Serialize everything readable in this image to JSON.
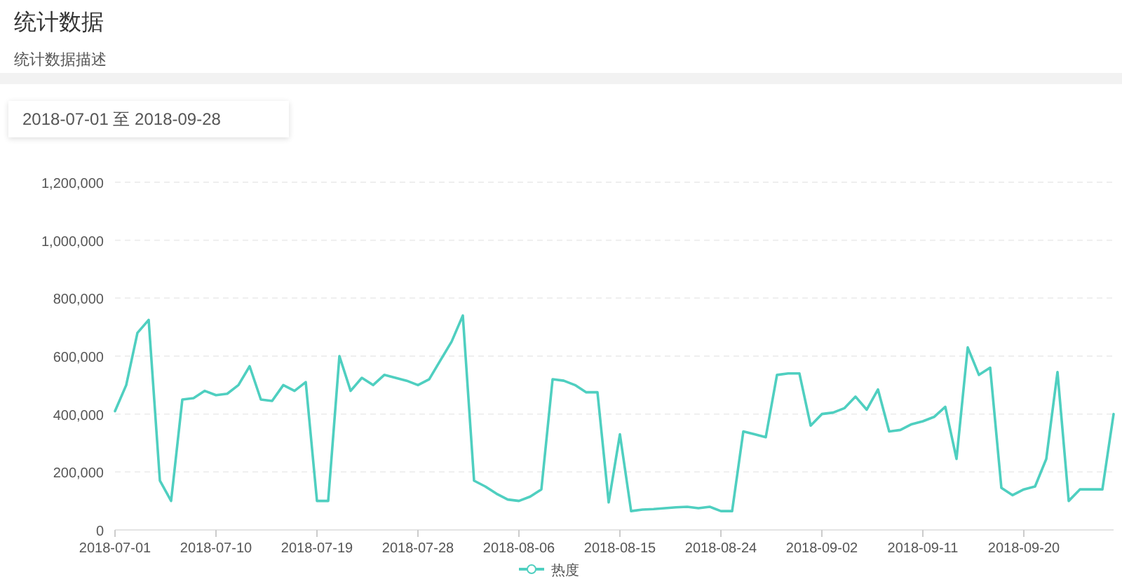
{
  "chart_data": {
    "type": "line",
    "title": "统计数据",
    "subtitle": "统计数据描述",
    "annotations": [
      "2018-07-01 至 2018-09-28"
    ],
    "x": [
      "2018-07-01",
      "2018-07-02",
      "2018-07-03",
      "2018-07-04",
      "2018-07-05",
      "2018-07-06",
      "2018-07-07",
      "2018-07-08",
      "2018-07-09",
      "2018-07-10",
      "2018-07-11",
      "2018-07-12",
      "2018-07-13",
      "2018-07-14",
      "2018-07-15",
      "2018-07-16",
      "2018-07-17",
      "2018-07-18",
      "2018-07-19",
      "2018-07-20",
      "2018-07-21",
      "2018-07-22",
      "2018-07-23",
      "2018-07-24",
      "2018-07-25",
      "2018-07-26",
      "2018-07-27",
      "2018-07-28",
      "2018-07-29",
      "2018-07-30",
      "2018-07-31",
      "2018-08-01",
      "2018-08-02",
      "2018-08-03",
      "2018-08-04",
      "2018-08-05",
      "2018-08-06",
      "2018-08-07",
      "2018-08-08",
      "2018-08-09",
      "2018-08-10",
      "2018-08-11",
      "2018-08-12",
      "2018-08-13",
      "2018-08-14",
      "2018-08-15",
      "2018-08-16",
      "2018-08-17",
      "2018-08-18",
      "2018-08-19",
      "2018-08-20",
      "2018-08-21",
      "2018-08-22",
      "2018-08-23",
      "2018-08-24",
      "2018-08-25",
      "2018-08-26",
      "2018-08-27",
      "2018-08-28",
      "2018-08-29",
      "2018-08-30",
      "2018-08-31",
      "2018-09-01",
      "2018-09-02",
      "2018-09-03",
      "2018-09-04",
      "2018-09-05",
      "2018-09-06",
      "2018-09-07",
      "2018-09-08",
      "2018-09-09",
      "2018-09-10",
      "2018-09-11",
      "2018-09-12",
      "2018-09-13",
      "2018-09-14",
      "2018-09-15",
      "2018-09-16",
      "2018-09-17",
      "2018-09-18",
      "2018-09-19",
      "2018-09-20",
      "2018-09-21",
      "2018-09-22",
      "2018-09-23",
      "2018-09-24",
      "2018-09-25",
      "2018-09-26",
      "2018-09-27",
      "2018-09-28"
    ],
    "series": [
      {
        "name": "热度",
        "color": "#4fcfc0",
        "values": [
          410000,
          500000,
          680000,
          725000,
          170000,
          100000,
          450000,
          455000,
          480000,
          465000,
          470000,
          500000,
          565000,
          450000,
          445000,
          500000,
          480000,
          510000,
          100000,
          100000,
          600000,
          480000,
          525000,
          500000,
          535000,
          525000,
          515000,
          500000,
          520000,
          585000,
          650000,
          740000,
          170000,
          150000,
          125000,
          105000,
          100000,
          115000,
          140000,
          520000,
          515000,
          500000,
          475000,
          475000,
          95000,
          330000,
          65000,
          70000,
          72000,
          75000,
          78000,
          80000,
          75000,
          80000,
          65000,
          65000,
          340000,
          330000,
          320000,
          535000,
          540000,
          540000,
          360000,
          400000,
          405000,
          420000,
          460000,
          415000,
          485000,
          340000,
          345000,
          365000,
          375000,
          390000,
          425000,
          245000,
          630000,
          535000,
          560000,
          145000,
          120000,
          140000,
          150000,
          245000,
          545000,
          100000,
          140000,
          140000,
          140000,
          400000
        ]
      }
    ],
    "xlim": [
      "2018-07-01",
      "2018-09-28"
    ],
    "xticks": [
      "2018-07-01",
      "2018-07-10",
      "2018-07-19",
      "2018-07-28",
      "2018-08-06",
      "2018-08-15",
      "2018-08-24",
      "2018-09-02",
      "2018-09-11",
      "2018-09-20"
    ],
    "ylim": [
      0,
      1200000
    ],
    "yticks": [
      {
        "value": 0,
        "label": "0"
      },
      {
        "value": 200000,
        "label": "200,000"
      },
      {
        "value": 400000,
        "label": "400,000"
      },
      {
        "value": 600000,
        "label": "600,000"
      },
      {
        "value": 800000,
        "label": "800,000"
      },
      {
        "value": 1000000,
        "label": "1,000,000"
      },
      {
        "value": 1200000,
        "label": "1,200,000"
      }
    ],
    "grid": "y",
    "legend": "bottom",
    "marker": "none",
    "line_style": "solid"
  }
}
